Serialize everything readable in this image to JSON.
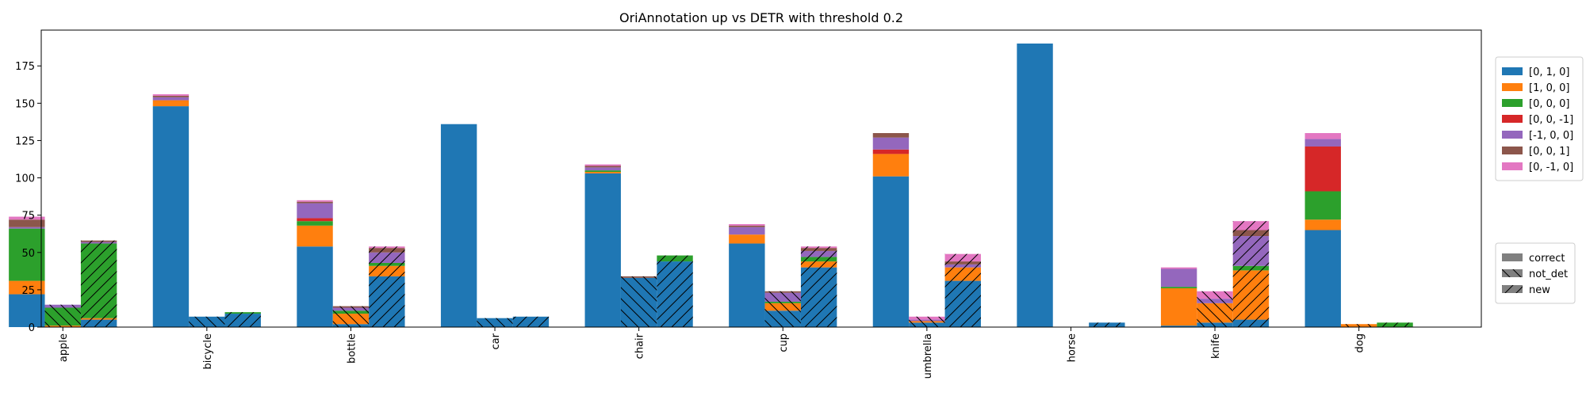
{
  "chart_data": {
    "type": "bar",
    "title": "OriAnnotation up vs DETR with threshold 0.2",
    "xlabel": "",
    "ylabel": "",
    "ylim": [
      0,
      199
    ],
    "yticks": [
      0,
      25,
      50,
      75,
      100,
      125,
      150,
      175
    ],
    "categories": [
      "apple",
      "bicycle",
      "bottle",
      "car",
      "chair",
      "cup",
      "umbrella",
      "horse",
      "knife",
      "dog"
    ],
    "series": [
      {
        "name": "[0, 1, 0]",
        "color": "#1f77b4"
      },
      {
        "name": "[1, 0, 0]",
        "color": "#ff7f0e"
      },
      {
        "name": "[0, 0, 0]",
        "color": "#2ca02c"
      },
      {
        "name": "[0, 0, -1]",
        "color": "#d62728"
      },
      {
        "name": "[-1, 0, 0]",
        "color": "#9467bd"
      },
      {
        "name": "[0, 0, 1]",
        "color": "#8c564b"
      },
      {
        "name": "[0, -1, 0]",
        "color": "#e377c2"
      }
    ],
    "groups": [
      {
        "name": "correct",
        "hatch": "none"
      },
      {
        "name": "not_det",
        "hatch": "backslash"
      },
      {
        "name": "new",
        "hatch": "slash"
      }
    ],
    "data": {
      "correct": [
        [
          22,
          9,
          35,
          0,
          1,
          5,
          2
        ],
        [
          148,
          4,
          0,
          0,
          2,
          1,
          1
        ],
        [
          54,
          14,
          3,
          2,
          10,
          1,
          1
        ],
        [
          136,
          0,
          0,
          0,
          0,
          0,
          0
        ],
        [
          103,
          1,
          1,
          0,
          2,
          1,
          1
        ],
        [
          56,
          6,
          0,
          0,
          5,
          1,
          1
        ],
        [
          101,
          15,
          0,
          3,
          8,
          3,
          0
        ],
        [
          190,
          0,
          0,
          0,
          0,
          0,
          0
        ],
        [
          1,
          25,
          1,
          0,
          12,
          0,
          1
        ],
        [
          65,
          7,
          19,
          30,
          5,
          0,
          4
        ]
      ],
      "not_det": [
        [
          0,
          1,
          12,
          0,
          2,
          0,
          0
        ],
        [
          7,
          0,
          0,
          0,
          0,
          0,
          0
        ],
        [
          2,
          7,
          2,
          0,
          2,
          1,
          0
        ],
        [
          6,
          0,
          0,
          0,
          0,
          0,
          0
        ],
        [
          33,
          0,
          0,
          0,
          0,
          1,
          0
        ],
        [
          11,
          5,
          1,
          0,
          6,
          1,
          0
        ],
        [
          3,
          1,
          0,
          0,
          1,
          0,
          2
        ],
        [
          0,
          0,
          0,
          0,
          0,
          0,
          0
        ],
        [
          3,
          13,
          0,
          0,
          3,
          0,
          5
        ],
        [
          0,
          2,
          0,
          0,
          0,
          0,
          0
        ]
      ],
      "new": [
        [
          5,
          1,
          50,
          0,
          1,
          1,
          0
        ],
        [
          9,
          0,
          1,
          0,
          0,
          0,
          0
        ],
        [
          34,
          7,
          2,
          0,
          7,
          3,
          1
        ],
        [
          7,
          0,
          0,
          0,
          0,
          0,
          0
        ],
        [
          44,
          0,
          4,
          0,
          0,
          0,
          0
        ],
        [
          40,
          4,
          3,
          0,
          4,
          2,
          1
        ],
        [
          31,
          9,
          0,
          0,
          2,
          2,
          5
        ],
        [
          3,
          0,
          0,
          0,
          0,
          0,
          0
        ],
        [
          5,
          33,
          3,
          0,
          20,
          4,
          6
        ],
        [
          0,
          0,
          3,
          0,
          0,
          0,
          0
        ]
      ]
    },
    "legend_position": "right"
  }
}
